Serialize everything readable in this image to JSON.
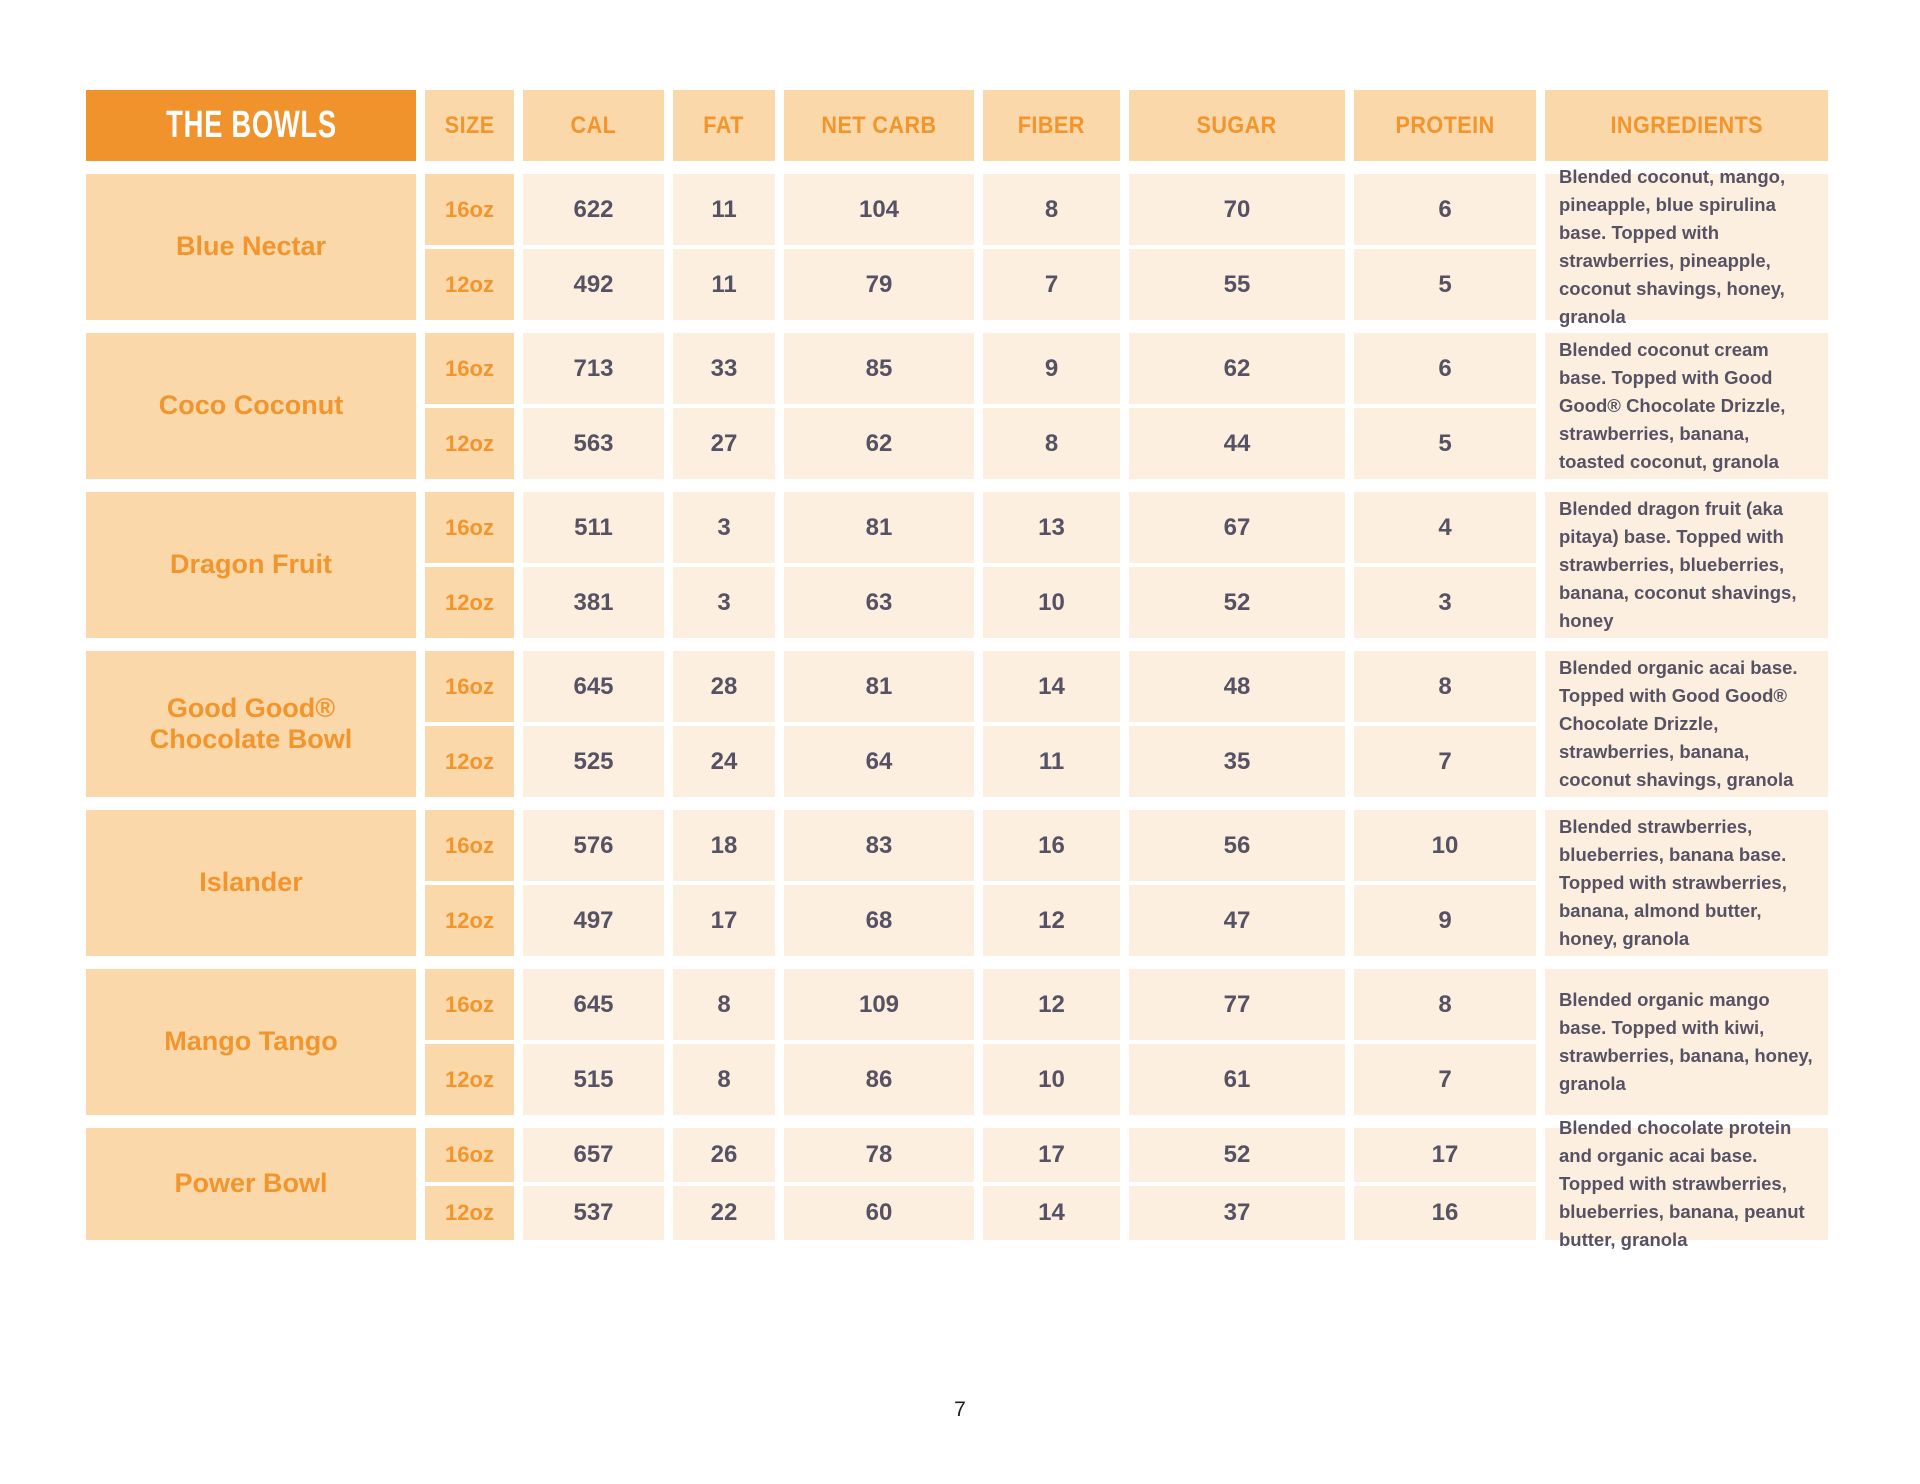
{
  "table": {
    "title": "THE BOWLS",
    "columns": [
      "SIZE",
      "CAL",
      "FAT",
      "NET CARB",
      "FIBER",
      "SUGAR",
      "PROTEIN",
      "INGREDIENTS"
    ],
    "bowls": [
      {
        "name": "Blue Nectar",
        "ingredients": "Blended coconut, mango, pineapple, blue spirulina base. Topped with strawberries, pineapple, coconut shavings, honey, granola",
        "rows": [
          {
            "size": "16oz",
            "cal": "622",
            "fat": "11",
            "net_carb": "104",
            "fiber": "8",
            "sugar": "70",
            "protein": "6"
          },
          {
            "size": "12oz",
            "cal": "492",
            "fat": "11",
            "net_carb": "79",
            "fiber": "7",
            "sugar": "55",
            "protein": "5"
          }
        ]
      },
      {
        "name": "Coco Coconut",
        "ingredients": "Blended coconut cream base. Topped with Good Good® Chocolate Drizzle, strawberries, banana, toasted coconut, granola",
        "rows": [
          {
            "size": "16oz",
            "cal": "713",
            "fat": "33",
            "net_carb": "85",
            "fiber": "9",
            "sugar": "62",
            "protein": "6"
          },
          {
            "size": "12oz",
            "cal": "563",
            "fat": "27",
            "net_carb": "62",
            "fiber": "8",
            "sugar": "44",
            "protein": "5"
          }
        ]
      },
      {
        "name": "Dragon Fruit",
        "ingredients": "Blended dragon fruit (aka pitaya) base. Topped with strawberries, blueberries, banana, coconut shavings, honey",
        "rows": [
          {
            "size": "16oz",
            "cal": "511",
            "fat": "3",
            "net_carb": "81",
            "fiber": "13",
            "sugar": "67",
            "protein": "4"
          },
          {
            "size": "12oz",
            "cal": "381",
            "fat": "3",
            "net_carb": "63",
            "fiber": "10",
            "sugar": "52",
            "protein": "3"
          }
        ]
      },
      {
        "name": "Good Good® Chocolate Bowl",
        "ingredients": "Blended organic acai base. Topped with Good Good® Chocolate Drizzle, strawberries, banana, coconut shavings, granola",
        "rows": [
          {
            "size": "16oz",
            "cal": "645",
            "fat": "28",
            "net_carb": "81",
            "fiber": "14",
            "sugar": "48",
            "protein": "8"
          },
          {
            "size": "12oz",
            "cal": "525",
            "fat": "24",
            "net_carb": "64",
            "fiber": "11",
            "sugar": "35",
            "protein": "7"
          }
        ]
      },
      {
        "name": "Islander",
        "ingredients": "Blended strawberries, blueberries, banana base. Topped with strawberries, banana, almond butter, honey, granola",
        "rows": [
          {
            "size": "16oz",
            "cal": "576",
            "fat": "18",
            "net_carb": "83",
            "fiber": "16",
            "sugar": "56",
            "protein": "10"
          },
          {
            "size": "12oz",
            "cal": "497",
            "fat": "17",
            "net_carb": "68",
            "fiber": "12",
            "sugar": "47",
            "protein": "9"
          }
        ]
      },
      {
        "name": "Mango Tango",
        "ingredients": "Blended organic mango base. Topped with kiwi, strawberries, banana, honey, granola",
        "rows": [
          {
            "size": "16oz",
            "cal": "645",
            "fat": "8",
            "net_carb": "109",
            "fiber": "12",
            "sugar": "77",
            "protein": "8"
          },
          {
            "size": "12oz",
            "cal": "515",
            "fat": "8",
            "net_carb": "86",
            "fiber": "10",
            "sugar": "61",
            "protein": "7"
          }
        ]
      },
      {
        "name": "Power Bowl",
        "ingredients": "Blended chocolate protein and organic acai base. Topped with strawberries, blueberries, banana, peanut butter, granola",
        "rows": [
          {
            "size": "16oz",
            "cal": "657",
            "fat": "26",
            "net_carb": "78",
            "fiber": "17",
            "sugar": "52",
            "protein": "17"
          },
          {
            "size": "12oz",
            "cal": "537",
            "fat": "22",
            "net_carb": "60",
            "fiber": "14",
            "sugar": "37",
            "protein": "16"
          }
        ]
      }
    ]
  },
  "page_number": "7",
  "colors": {
    "header_orange": "#F0932D",
    "orange_text": "#F2952C",
    "peach_dark": "#FAD8AA",
    "peach_light": "#FCEFE0",
    "dark_text": "#575263",
    "page_bg": "#FFFFFF"
  }
}
